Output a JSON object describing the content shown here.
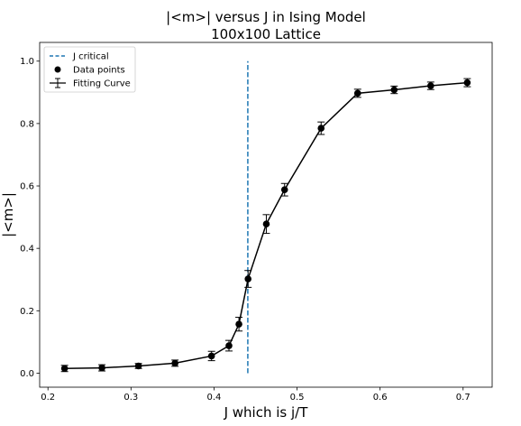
{
  "chart_data": {
    "type": "line",
    "title": "|<m>| versus J in Ising Model",
    "subtitle": "100x100 Lattice",
    "xlabel": "J which is j/T",
    "ylabel": "|<m>|",
    "xlim": [
      0.19,
      0.735
    ],
    "ylim": [
      -0.045,
      1.06
    ],
    "xticks": [
      "0.2",
      "0.3",
      "0.4",
      "0.5",
      "0.6",
      "0.7"
    ],
    "yticks": [
      "0.0",
      "0.2",
      "0.4",
      "0.6",
      "0.8",
      "1.0"
    ],
    "grid": false,
    "legend_position": "top-left",
    "legend": {
      "critical": "J critical",
      "points": "Data points",
      "fit": "Fitting Curve"
    },
    "critical_line": {
      "x": 0.4407,
      "y_range": [
        0.0,
        1.0
      ],
      "color": "#1f77b4"
    },
    "series": [
      {
        "name": "Data points",
        "x": [
          0.22,
          0.265,
          0.309,
          0.353,
          0.397,
          0.418,
          0.43,
          0.441,
          0.463,
          0.485,
          0.529,
          0.573,
          0.617,
          0.661,
          0.705
        ],
        "y": [
          0.015,
          0.017,
          0.023,
          0.032,
          0.055,
          0.088,
          0.157,
          0.302,
          0.478,
          0.588,
          0.785,
          0.897,
          0.908,
          0.921,
          0.931
        ],
        "yerr": [
          0.01,
          0.01,
          0.008,
          0.01,
          0.015,
          0.017,
          0.022,
          0.027,
          0.03,
          0.02,
          0.02,
          0.013,
          0.012,
          0.012,
          0.013
        ]
      }
    ]
  }
}
